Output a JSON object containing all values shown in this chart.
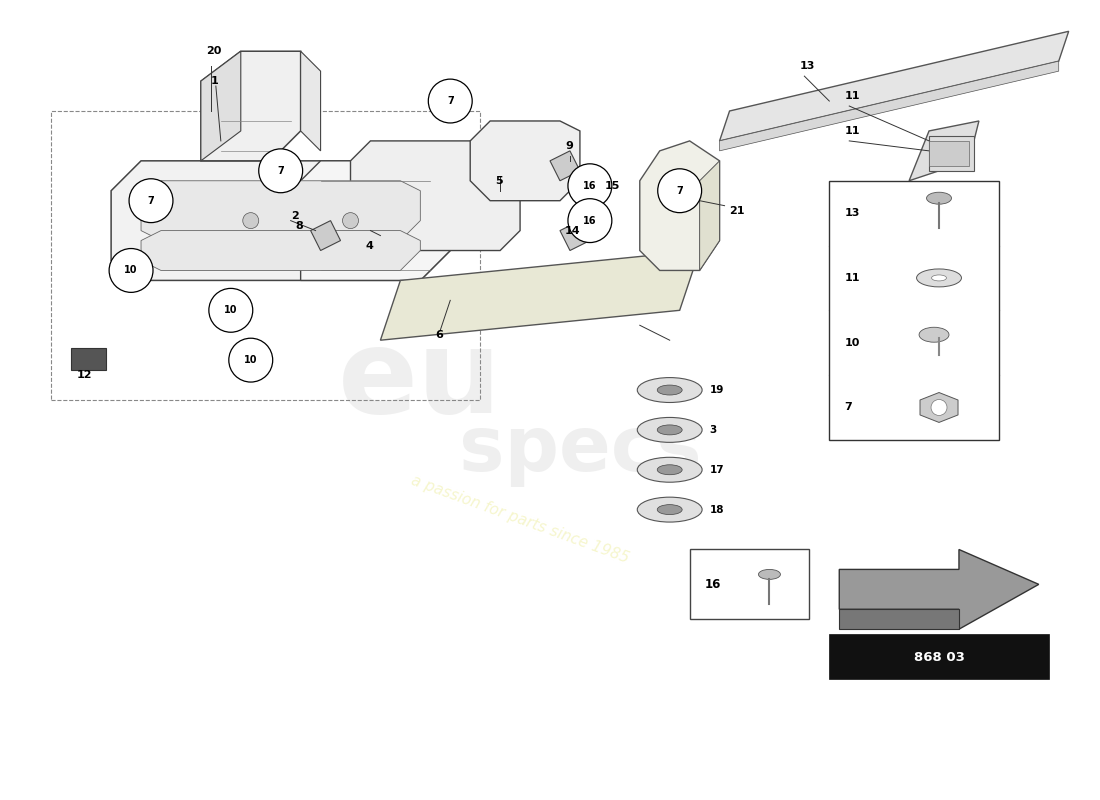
{
  "background_color": "#ffffff",
  "watermark_text": "a passion for parts since 1985",
  "part_number": "868 03",
  "fig_width": 11.0,
  "fig_height": 8.0
}
